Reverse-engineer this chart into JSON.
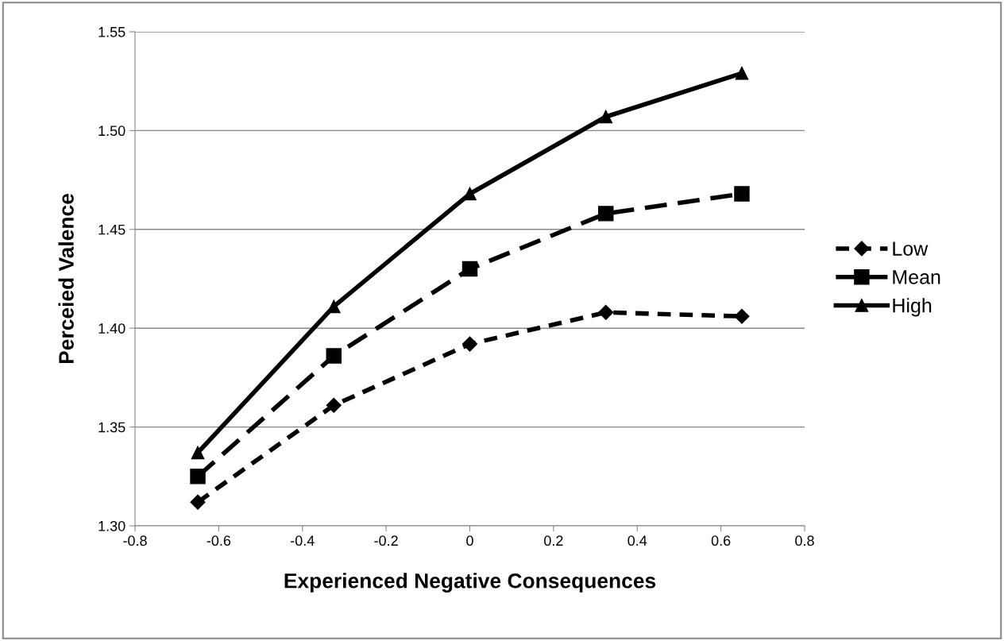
{
  "chart_data": {
    "type": "line",
    "xlabel": "Experienced Negative Consequences",
    "ylabel": "Perceied Valence",
    "x": [
      -0.65,
      -0.325,
      0,
      0.325,
      0.65
    ],
    "series": [
      {
        "name": "Low",
        "color": "#000000",
        "values": [
          1.312,
          1.361,
          1.392,
          1.408,
          1.406
        ],
        "marker": "diamond",
        "line_style": "dotted"
      },
      {
        "name": "Mean",
        "color": "#000000",
        "values": [
          1.325,
          1.386,
          1.43,
          1.458,
          1.468
        ],
        "marker": "square",
        "line_style": "dashed"
      },
      {
        "name": "High",
        "color": "#000000",
        "values": [
          1.337,
          1.411,
          1.468,
          1.507,
          1.529
        ],
        "marker": "triangle",
        "line_style": "solid"
      }
    ],
    "xlim": [
      -0.8,
      0.8
    ],
    "xticks": [
      -0.8,
      -0.6,
      -0.4,
      -0.2,
      0,
      0.2,
      0.4,
      0.6,
      0.8
    ],
    "ylim": [
      1.3,
      1.55
    ],
    "yticks": [
      {
        "value": 1.3,
        "label": "1.30"
      },
      {
        "value": 1.35,
        "label": "1.35"
      },
      {
        "value": 1.4,
        "label": "1.40"
      },
      {
        "value": 1.45,
        "label": "1.45"
      },
      {
        "value": 1.5,
        "label": "1.50"
      },
      {
        "value": 1.55,
        "label": "1.55"
      }
    ],
    "grid": "y",
    "legend": "right"
  }
}
